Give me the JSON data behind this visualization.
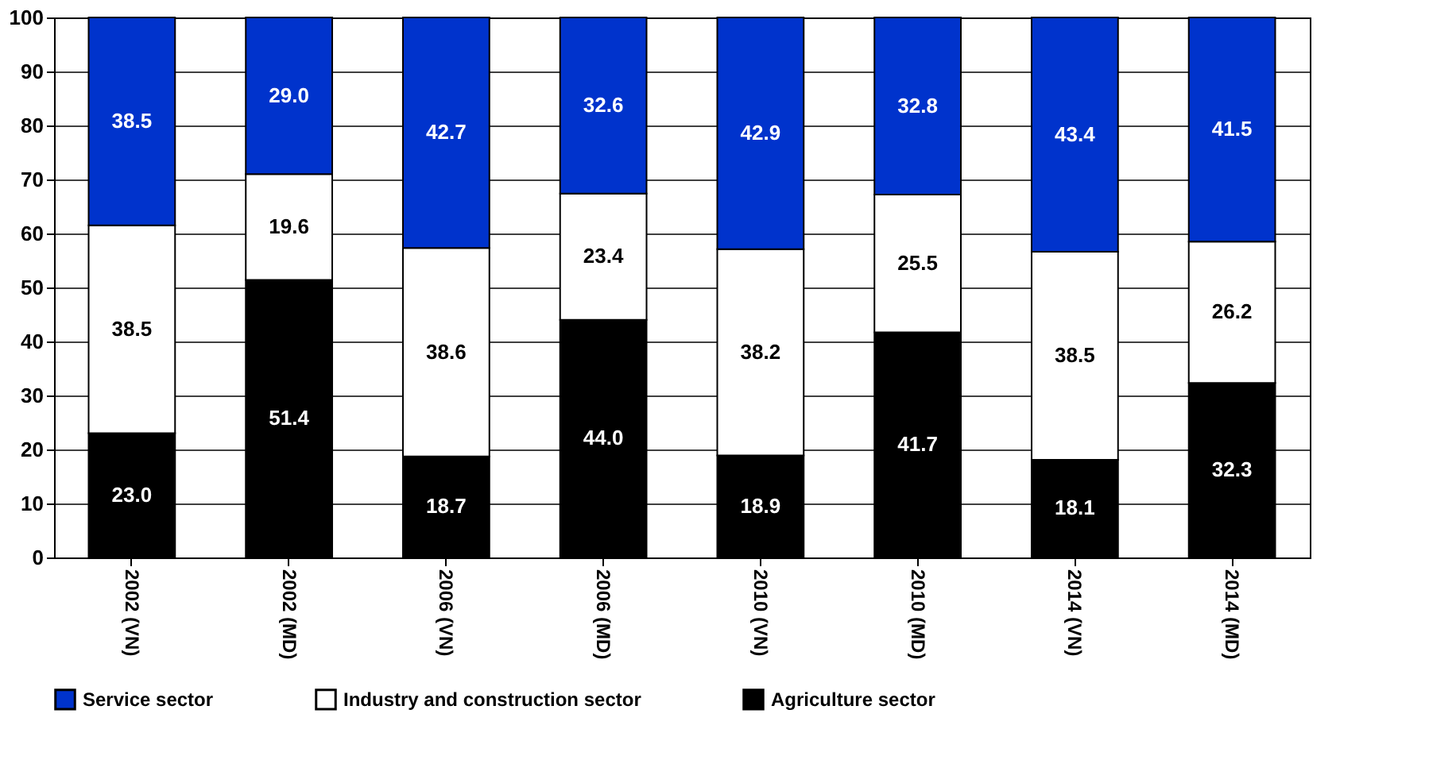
{
  "chart_data": {
    "type": "bar",
    "stacked": true,
    "legend": "bottom",
    "grid": "y",
    "categories": [
      "2002 (VN)",
      "2002 (MD)",
      "2006 (VN)",
      "2006 (MD)",
      "2010 (VN)",
      "2010 (MD)",
      "2014 (VN)",
      "2014 (MD)"
    ],
    "ylim": [
      0,
      100
    ],
    "yticks": [
      0,
      10,
      20,
      30,
      40,
      50,
      60,
      70,
      80,
      90,
      100
    ],
    "series": [
      {
        "name": "Agriculture sector",
        "color": "#000000",
        "values": [
          23.0,
          51.4,
          18.7,
          44.0,
          18.9,
          41.7,
          18.1,
          32.3
        ],
        "value_labels": [
          "23.0",
          "51.4",
          "18.7",
          "44.0",
          "18.9",
          "41.7",
          "18.1",
          "32.3"
        ]
      },
      {
        "name": "Industry and construction sector",
        "color": "#ffffff",
        "values": [
          38.5,
          19.6,
          38.6,
          23.4,
          38.2,
          25.5,
          38.5,
          26.2
        ],
        "value_labels": [
          "38.5",
          "19.6",
          "38.6",
          "23.4",
          "38.2",
          "25.5",
          "38.5",
          "26.2"
        ]
      },
      {
        "name": "Service sector",
        "color": "#0033cc",
        "values": [
          38.5,
          29.0,
          42.7,
          32.6,
          42.9,
          32.8,
          43.4,
          41.5
        ],
        "value_labels": [
          "38.5",
          "29.0",
          "42.7",
          "32.6",
          "42.9",
          "32.8",
          "43.4",
          "41.5"
        ]
      }
    ]
  }
}
